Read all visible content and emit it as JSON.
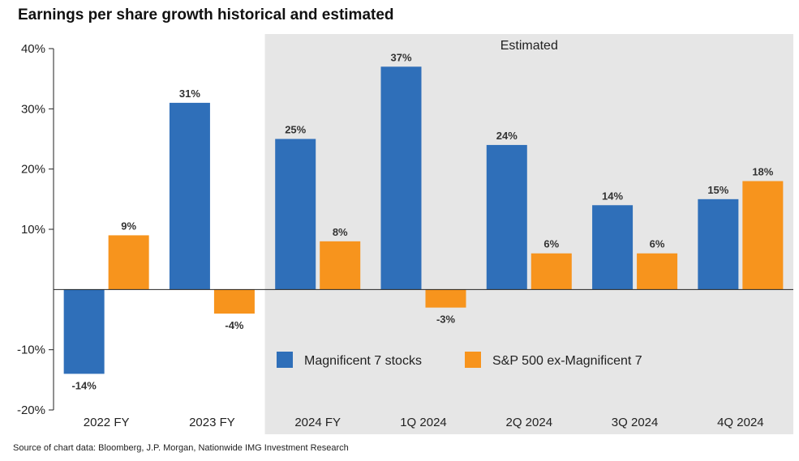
{
  "title": "Earnings per share growth historical and estimated",
  "source": "Source of chart data: Bloomberg, J.P. Morgan, Nationwide IMG Investment Research",
  "chart_data": {
    "type": "bar",
    "categories": [
      "2022 FY",
      "2023 FY",
      "2024 FY",
      "1Q 2024",
      "2Q 2024",
      "3Q 2024",
      "4Q 2024"
    ],
    "series": [
      {
        "name": "Magnificent 7 stocks",
        "color": "#2f6fb9",
        "values": [
          -14,
          31,
          25,
          37,
          24,
          14,
          15
        ],
        "labels": [
          "-14%",
          "31%",
          "25%",
          "37%",
          "24%",
          "14%",
          "15%"
        ]
      },
      {
        "name": "S&P 500 ex-Magnificent 7",
        "color": "#f7941d",
        "values": [
          9,
          -4,
          8,
          -3,
          6,
          6,
          18
        ],
        "labels": [
          "9%",
          "-4%",
          "8%",
          "-3%",
          "6%",
          "6%",
          "18%"
        ]
      }
    ],
    "ylim": [
      -20,
      40
    ],
    "yticks": [
      -20,
      -10,
      10,
      20,
      30,
      40
    ],
    "ytick_labels": [
      "-20%",
      "-10%",
      "10%",
      "20%",
      "30%",
      "40%"
    ],
    "shaded_region": {
      "label": "Estimated",
      "from_category": "2024 FY",
      "color": "#e6e6e6"
    },
    "legend": "center-right",
    "grid": false
  }
}
